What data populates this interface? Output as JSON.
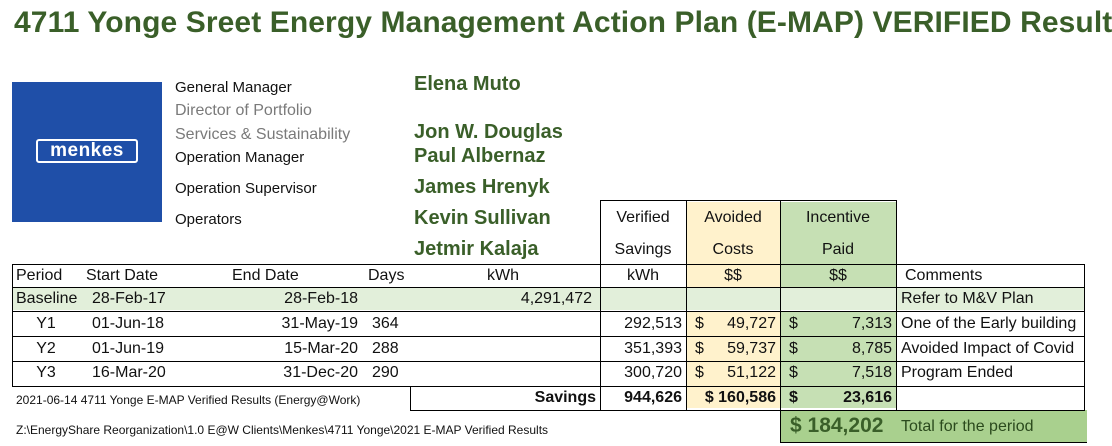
{
  "title": "4711 Yonge Sreet Energy Management Action Plan (E-MAP) VERIFIED Result",
  "logo": {
    "text": "menkes",
    "color": "#1f4fa8"
  },
  "colors": {
    "title_green": "#3a5f29",
    "baseline_row": "#e2efda",
    "avoided_bg": "#fff2cc",
    "incentive_bg": "#c6e0b4",
    "total_bg": "#a9d08e"
  },
  "team": {
    "general_manager_label": "General Manager",
    "general_manager": "Elena Muto",
    "director_label_1": "Director of Portfolio",
    "director_label_2": "Services & Sustainability",
    "director": "Jon W. Douglas",
    "operation_manager_label": "Operation Manager",
    "operation_manager": "Paul Albernaz",
    "operation_supervisor_label": "Operation Supervisor",
    "operation_supervisor": "James Hrenyk",
    "operators_label": "Operators",
    "operator_1": "Kevin Sullivan",
    "operator_2": "Jetmir Kalaja"
  },
  "headers": {
    "verified": [
      "Verified",
      "Savings",
      "kWh"
    ],
    "avoided": [
      "Avoided",
      "Costs",
      "$$"
    ],
    "incentive": [
      "Incentive",
      "Paid",
      "$$"
    ],
    "period": "Period",
    "start": "Start Date",
    "end": "End Date",
    "days": "Days",
    "kwh": "kWh",
    "comments": "Comments"
  },
  "rows": [
    {
      "period": "Baseline",
      "start": "28-Feb-17",
      "end": "28-Feb-18",
      "days": "",
      "kwh": "4,291,472",
      "savings": "",
      "cur1": "",
      "avoided": "",
      "cur2": "",
      "incentive": "",
      "comment": "Refer to M&V Plan"
    },
    {
      "period": "Y1",
      "start": "01-Jun-18",
      "end": "31-May-19",
      "days": "364",
      "kwh": "",
      "savings": "292,513",
      "cur1": "$",
      "avoided": "49,727",
      "cur2": "$",
      "incentive": "7,313",
      "comment": "One of the Early building"
    },
    {
      "period": "Y2",
      "start": "01-Jun-19",
      "end": "15-Mar-20",
      "days": "288",
      "kwh": "",
      "savings": "351,393",
      "cur1": "$",
      "avoided": "59,737",
      "cur2": "$",
      "incentive": "8,785",
      "comment": "Avoided Impact of Covid"
    },
    {
      "period": "Y3",
      "start": "16-Mar-20",
      "end": "31-Dec-20",
      "days": "290",
      "kwh": "",
      "savings": "300,720",
      "cur1": "$",
      "avoided": "51,122",
      "cur2": "$",
      "incentive": "7,518",
      "comment": "Program Ended"
    }
  ],
  "totals": {
    "label": "Savings",
    "kwh": "944,626",
    "avoided": "$ 160,586",
    "cur": "$",
    "incentive": "23,616",
    "grand_total": "$ 184,202",
    "grand_total_label": "Total for the period"
  },
  "footer": {
    "line1": "2021-06-14 4711 Yonge E-MAP Verified Results (Energy@Work)",
    "line2": "Z:\\EnergyShare Reorganization\\1.0  E@W Clients\\Menkes\\4711 Yonge\\2021 E-MAP Verified Results"
  }
}
